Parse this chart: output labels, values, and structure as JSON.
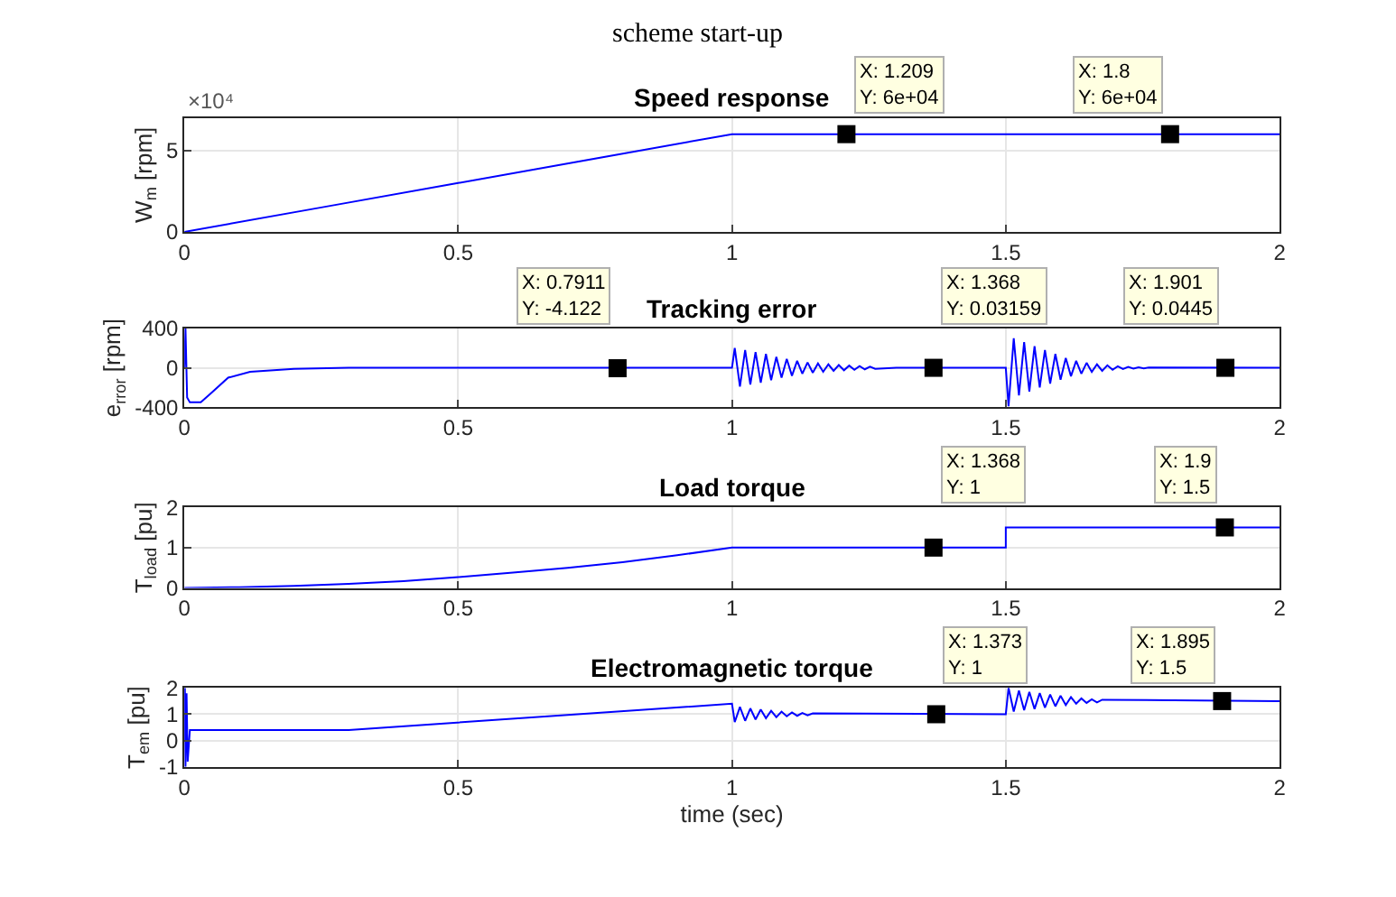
{
  "chart_data": [
    {
      "type": "line",
      "title": "Speed response",
      "ylabel": "W$_{m}$ [rpm]",
      "grid": true,
      "marker": "none",
      "line_style": "solid",
      "annotations": [
        "scheme start-up",
        "×10⁴",
        {
          "text": "X: 1.209\nY: 6e+04",
          "x": 1.209,
          "y": 6
        },
        {
          "text": "X: 1.8\nY: 6e+04",
          "x": 1.8,
          "y": 6
        }
      ],
      "xlim": [
        0,
        2
      ],
      "xticks": [
        0,
        0.5,
        1,
        1.5,
        2
      ],
      "ylim": [
        0,
        7
      ],
      "yticks": [
        0,
        5
      ],
      "series": [
        {
          "color": "#0000ff",
          "x": [
            0,
            0.25,
            0.5,
            0.75,
            1,
            1.25,
            1.5,
            1.75,
            2
          ],
          "values": [
            0,
            1.5,
            3,
            4.5,
            6,
            6,
            6,
            6,
            6
          ]
        }
      ]
    },
    {
      "type": "line",
      "title": "Tracking error",
      "ylabel": "e$_{rror}$ [rpm]",
      "grid": true,
      "marker": "none",
      "line_style": "solid",
      "annotations": [
        {
          "text": "X: 0.7911\nY: -4.122",
          "x": 0.7911,
          "y": -4.122
        },
        {
          "text": "X: 1.368\nY: 0.03159",
          "x": 1.368,
          "y": 0.03159
        },
        {
          "text": "X: 1.901\nY: 0.0445",
          "x": 1.901,
          "y": 0.0445
        }
      ],
      "xlim": [
        0,
        2
      ],
      "xticks": [
        0,
        0.5,
        1,
        1.5,
        2
      ],
      "ylim": [
        -400,
        400
      ],
      "yticks": [
        -400,
        0,
        400
      ],
      "series": [
        {
          "color": "#0000ff",
          "x": [
            0,
            0.002,
            0.005,
            0.01,
            0.03,
            0.05,
            0.08,
            0.12,
            0.2,
            0.3,
            1.0,
            1.005,
            1.0145,
            1.024,
            1.0335,
            1.043,
            1.0525,
            1.062,
            1.0715,
            1.081,
            1.0905,
            1.1,
            1.1095,
            1.119,
            1.1285,
            1.138,
            1.1475,
            1.157,
            1.1665,
            1.176,
            1.1855,
            1.195,
            1.2045,
            1.214,
            1.2235,
            1.233,
            1.2425,
            1.252,
            1.2615,
            1.3,
            1.5,
            1.505,
            1.5145,
            1.524,
            1.5335,
            1.543,
            1.5525,
            1.562,
            1.5715,
            1.581,
            1.5905,
            1.6,
            1.6095,
            1.619,
            1.6285,
            1.638,
            1.6475,
            1.657,
            1.6665,
            1.676,
            1.6855,
            1.695,
            1.7045,
            1.714,
            1.7235,
            1.733,
            1.7425,
            1.752,
            1.7615,
            2.0
          ],
          "values": [
            0,
            400,
            -300,
            -350,
            -350,
            -250,
            -100,
            -40,
            -10,
            0,
            0,
            200,
            -190,
            180,
            -170,
            160,
            -150,
            140,
            -125,
            110,
            -100,
            90,
            -80,
            70,
            -60,
            55,
            -50,
            45,
            -40,
            35,
            -30,
            28,
            -25,
            22,
            -20,
            18,
            -15,
            12,
            -10,
            0,
            0,
            -390,
            300,
            -280,
            260,
            -240,
            220,
            -200,
            180,
            -160,
            140,
            -120,
            100,
            -85,
            70,
            -60,
            50,
            -42,
            35,
            -30,
            25,
            -20,
            16,
            -12,
            10,
            -8,
            6,
            -5,
            4,
            0
          ]
        }
      ]
    },
    {
      "type": "line",
      "title": "Load torque",
      "ylabel": "T$_{load}$ [pu]",
      "grid": true,
      "marker": "none",
      "line_style": "solid",
      "annotations": [
        {
          "text": "X: 1.368\nY: 1",
          "x": 1.368,
          "y": 1
        },
        {
          "text": "X: 1.9\nY: 1.5",
          "x": 1.9,
          "y": 1.5
        }
      ],
      "xlim": [
        0,
        2
      ],
      "xticks": [
        0,
        0.5,
        1,
        1.5,
        2
      ],
      "ylim": [
        0,
        2
      ],
      "yticks": [
        0,
        1,
        2
      ],
      "series": [
        {
          "color": "#0000ff",
          "x": [
            0,
            0.1,
            0.2,
            0.3,
            0.4,
            0.5,
            0.6,
            0.7,
            0.8,
            0.9,
            1.0,
            1.5,
            1.5,
            2.0
          ],
          "values": [
            0,
            0.02,
            0.05,
            0.1,
            0.17,
            0.27,
            0.38,
            0.5,
            0.64,
            0.81,
            1.0,
            1.0,
            1.5,
            1.5
          ]
        }
      ]
    },
    {
      "type": "line",
      "title": "Electromagnetic torque",
      "ylabel": "T$_{em}$ [pu]",
      "xlabel": "time (sec)",
      "grid": true,
      "marker": "none",
      "line_style": "solid",
      "annotations": [
        {
          "text": "X: 1.373\nY: 1",
          "x": 1.373,
          "y": 1
        },
        {
          "text": "X: 1.895\nY: 1.5",
          "x": 1.895,
          "y": 1.5
        }
      ],
      "xlim": [
        0,
        2
      ],
      "xticks": [
        0,
        0.5,
        1,
        1.5,
        2
      ],
      "ylim": [
        -1,
        2
      ],
      "yticks": [
        -1,
        0,
        1,
        2
      ],
      "series": [
        {
          "color": "#0000ff",
          "x": [
            0,
            0.001,
            0.002,
            0.004,
            0.006,
            0.01,
            0.3,
            1.0,
            1.005,
            1.0145,
            1.024,
            1.0335,
            1.043,
            1.0525,
            1.062,
            1.0715,
            1.081,
            1.0905,
            1.1,
            1.1095,
            1.119,
            1.1285,
            1.138,
            1.1475,
            1.5,
            1.505,
            1.5145,
            1.524,
            1.5335,
            1.543,
            1.5525,
            1.562,
            1.5715,
            1.581,
            1.5905,
            1.6,
            1.6095,
            1.619,
            1.6285,
            1.638,
            1.6475,
            1.657,
            1.6665,
            1.676,
            2.0
          ],
          "values": [
            0,
            2,
            -1,
            1.8,
            -0.8,
            0.4,
            0.4,
            1.4,
            0.7,
            1.28,
            0.75,
            1.22,
            0.8,
            1.18,
            0.85,
            1.13,
            0.89,
            1.1,
            0.92,
            1.07,
            0.94,
            1.05,
            0.96,
            1.03,
            1,
            2.0,
            1.1,
            1.9,
            1.15,
            1.85,
            1.2,
            1.8,
            1.25,
            1.75,
            1.3,
            1.7,
            1.35,
            1.65,
            1.4,
            1.6,
            1.43,
            1.57,
            1.45,
            1.55,
            1.5
          ]
        }
      ]
    }
  ]
}
